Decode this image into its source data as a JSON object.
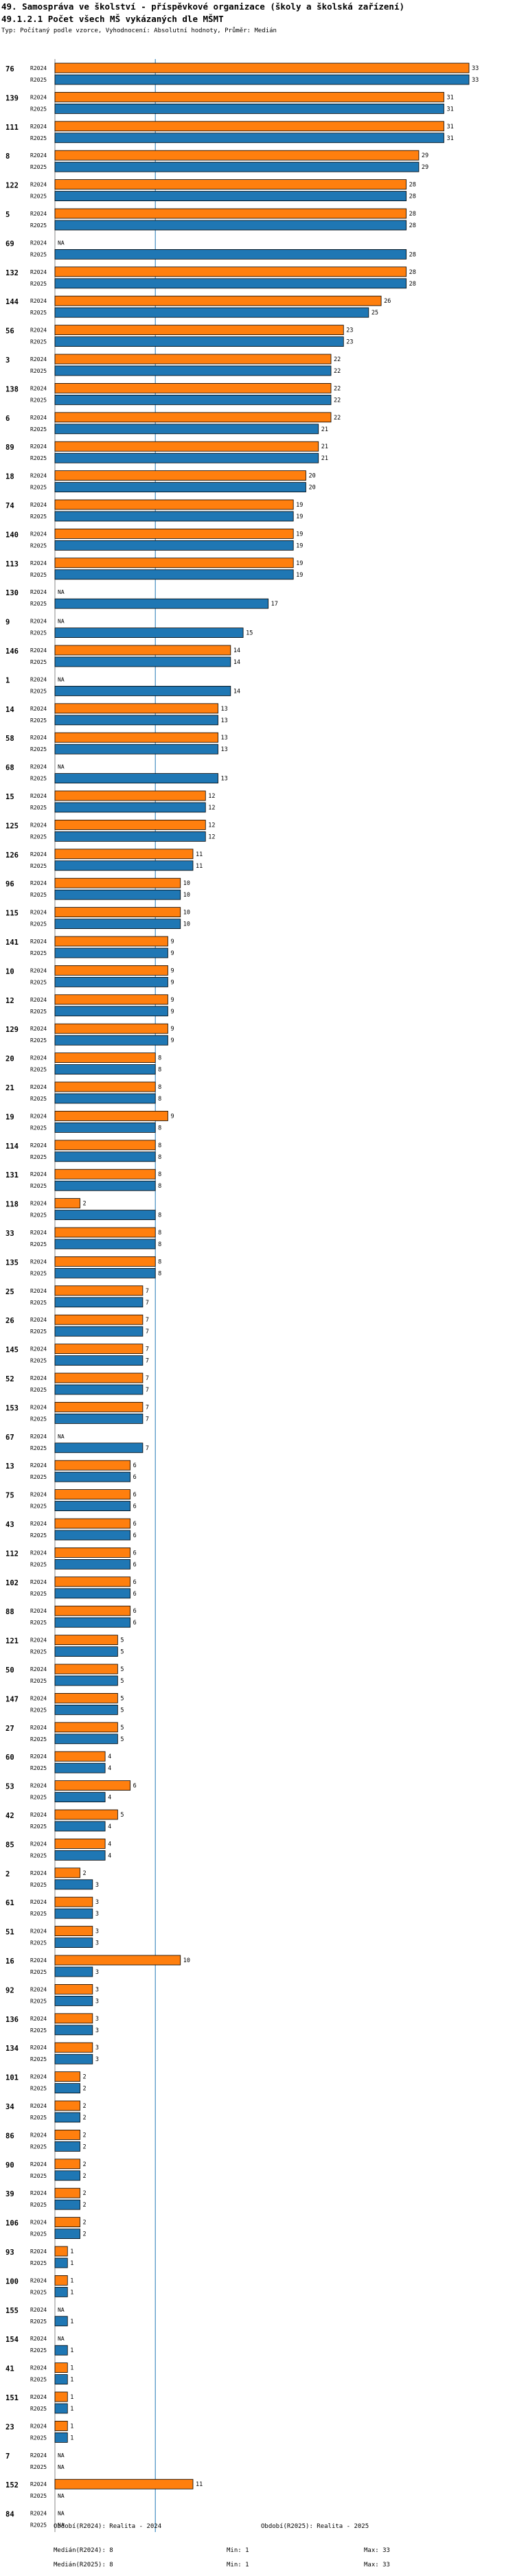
{
  "header": {
    "title": "49. Samospráva ve školství - příspěvkové organizace (školy a školská zařízení)",
    "subtitle": "49.1.2.1 Počet všech MŠ vykázaných dle MŠMT",
    "note": "Typ: Počítaný podle vzorce, Vyhodnocení: Absolutní hodnoty, Průměr: Medián"
  },
  "chart_data": {
    "type": "bar",
    "orientation": "horizontal",
    "series": [
      {
        "name": "R2024",
        "color": "#ff7f0e"
      },
      {
        "name": "R2025",
        "color": "#1f77b4"
      }
    ],
    "median_line": 8,
    "xlim": [
      0,
      33
    ],
    "na_label": "NA",
    "groups": [
      {
        "id": "76",
        "r2024": 33,
        "r2025": 33
      },
      {
        "id": "139",
        "r2024": 31,
        "r2025": 31
      },
      {
        "id": "111",
        "r2024": 31,
        "r2025": 31
      },
      {
        "id": "8",
        "r2024": 29,
        "r2025": 29
      },
      {
        "id": "122",
        "r2024": 28,
        "r2025": 28
      },
      {
        "id": "5",
        "r2024": 28,
        "r2025": 28
      },
      {
        "id": "69",
        "r2024": null,
        "r2025": 28
      },
      {
        "id": "132",
        "r2024": 28,
        "r2025": 28
      },
      {
        "id": "144",
        "r2024": 26,
        "r2025": 25
      },
      {
        "id": "56",
        "r2024": 23,
        "r2025": 23
      },
      {
        "id": "3",
        "r2024": 22,
        "r2025": 22
      },
      {
        "id": "138",
        "r2024": 22,
        "r2025": 22
      },
      {
        "id": "6",
        "r2024": 22,
        "r2025": 21
      },
      {
        "id": "89",
        "r2024": 21,
        "r2025": 21
      },
      {
        "id": "18",
        "r2024": 20,
        "r2025": 20
      },
      {
        "id": "74",
        "r2024": 19,
        "r2025": 19
      },
      {
        "id": "140",
        "r2024": 19,
        "r2025": 19
      },
      {
        "id": "113",
        "r2024": 19,
        "r2025": 19
      },
      {
        "id": "130",
        "r2024": null,
        "r2025": 17
      },
      {
        "id": "9",
        "r2024": null,
        "r2025": 15
      },
      {
        "id": "146",
        "r2024": 14,
        "r2025": 14
      },
      {
        "id": "1",
        "r2024": null,
        "r2025": 14
      },
      {
        "id": "14",
        "r2024": 13,
        "r2025": 13
      },
      {
        "id": "58",
        "r2024": 13,
        "r2025": 13
      },
      {
        "id": "68",
        "r2024": null,
        "r2025": 13
      },
      {
        "id": "15",
        "r2024": 12,
        "r2025": 12
      },
      {
        "id": "125",
        "r2024": 12,
        "r2025": 12
      },
      {
        "id": "126",
        "r2024": 11,
        "r2025": 11
      },
      {
        "id": "96",
        "r2024": 10,
        "r2025": 10
      },
      {
        "id": "115",
        "r2024": 10,
        "r2025": 10
      },
      {
        "id": "141",
        "r2024": 9,
        "r2025": 9
      },
      {
        "id": "10",
        "r2024": 9,
        "r2025": 9
      },
      {
        "id": "12",
        "r2024": 9,
        "r2025": 9
      },
      {
        "id": "129",
        "r2024": 9,
        "r2025": 9
      },
      {
        "id": "20",
        "r2024": 8,
        "r2025": 8
      },
      {
        "id": "21",
        "r2024": 8,
        "r2025": 8
      },
      {
        "id": "19",
        "r2024": 9,
        "r2025": 8
      },
      {
        "id": "114",
        "r2024": 8,
        "r2025": 8
      },
      {
        "id": "131",
        "r2024": 8,
        "r2025": 8
      },
      {
        "id": "118",
        "r2024": 2,
        "r2025": 8
      },
      {
        "id": "33",
        "r2024": 8,
        "r2025": 8
      },
      {
        "id": "135",
        "r2024": 8,
        "r2025": 8
      },
      {
        "id": "25",
        "r2024": 7,
        "r2025": 7
      },
      {
        "id": "26",
        "r2024": 7,
        "r2025": 7
      },
      {
        "id": "145",
        "r2024": 7,
        "r2025": 7
      },
      {
        "id": "52",
        "r2024": 7,
        "r2025": 7
      },
      {
        "id": "153",
        "r2024": 7,
        "r2025": 7
      },
      {
        "id": "67",
        "r2024": null,
        "r2025": 7
      },
      {
        "id": "13",
        "r2024": 6,
        "r2025": 6
      },
      {
        "id": "75",
        "r2024": 6,
        "r2025": 6
      },
      {
        "id": "43",
        "r2024": 6,
        "r2025": 6
      },
      {
        "id": "112",
        "r2024": 6,
        "r2025": 6
      },
      {
        "id": "102",
        "r2024": 6,
        "r2025": 6
      },
      {
        "id": "88",
        "r2024": 6,
        "r2025": 6
      },
      {
        "id": "121",
        "r2024": 5,
        "r2025": 5
      },
      {
        "id": "50",
        "r2024": 5,
        "r2025": 5
      },
      {
        "id": "147",
        "r2024": 5,
        "r2025": 5
      },
      {
        "id": "27",
        "r2024": 5,
        "r2025": 5
      },
      {
        "id": "60",
        "r2024": 4,
        "r2025": 4
      },
      {
        "id": "53",
        "r2024": 6,
        "r2025": 4
      },
      {
        "id": "42",
        "r2024": 5,
        "r2025": 4
      },
      {
        "id": "85",
        "r2024": 4,
        "r2025": 4
      },
      {
        "id": "2",
        "r2024": 2,
        "r2025": 3
      },
      {
        "id": "61",
        "r2024": 3,
        "r2025": 3
      },
      {
        "id": "51",
        "r2024": 3,
        "r2025": 3
      },
      {
        "id": "16",
        "r2024": 10,
        "r2025": 3
      },
      {
        "id": "92",
        "r2024": 3,
        "r2025": 3
      },
      {
        "id": "136",
        "r2024": 3,
        "r2025": 3
      },
      {
        "id": "134",
        "r2024": 3,
        "r2025": 3
      },
      {
        "id": "101",
        "r2024": 2,
        "r2025": 2
      },
      {
        "id": "34",
        "r2024": 2,
        "r2025": 2
      },
      {
        "id": "86",
        "r2024": 2,
        "r2025": 2
      },
      {
        "id": "90",
        "r2024": 2,
        "r2025": 2
      },
      {
        "id": "39",
        "r2024": 2,
        "r2025": 2
      },
      {
        "id": "106",
        "r2024": 2,
        "r2025": 2
      },
      {
        "id": "93",
        "r2024": 1,
        "r2025": 1
      },
      {
        "id": "100",
        "r2024": 1,
        "r2025": 1
      },
      {
        "id": "155",
        "r2024": null,
        "r2025": 1
      },
      {
        "id": "154",
        "r2024": null,
        "r2025": 1
      },
      {
        "id": "41",
        "r2024": 1,
        "r2025": 1
      },
      {
        "id": "151",
        "r2024": 1,
        "r2025": 1
      },
      {
        "id": "23",
        "r2024": 1,
        "r2025": 1
      },
      {
        "id": "7",
        "r2024": null,
        "r2025": null
      },
      {
        "id": "152",
        "r2024": 11,
        "r2025": null
      },
      {
        "id": "84",
        "r2024": null,
        "r2025": null
      }
    ]
  },
  "footer": {
    "period1": "Období(R2024): Realita - 2024",
    "period2": "Období(R2025): Realita - 2025",
    "median1": "Medián(R2024): 8",
    "median2": "Medián(R2025): 8",
    "min1": "Min: 1",
    "min2": "Min: 1",
    "max1": "Max: 33",
    "max2": "Max: 33"
  }
}
